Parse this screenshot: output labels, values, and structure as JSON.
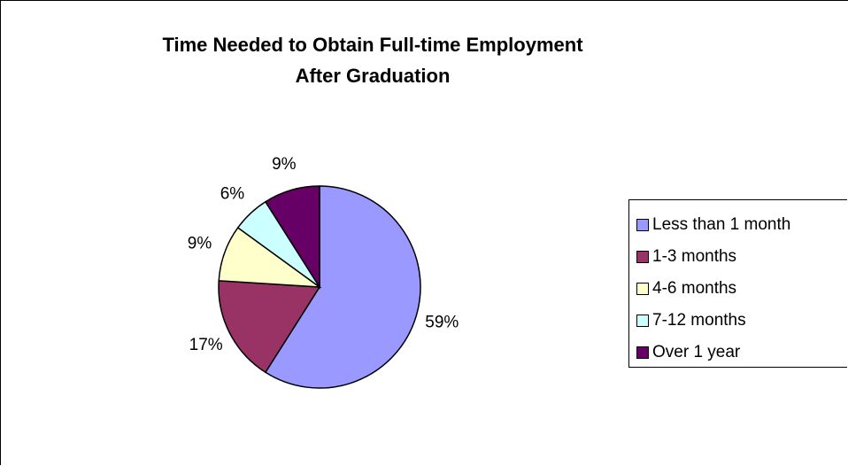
{
  "chart_data": {
    "type": "pie",
    "title_lines": [
      "Time Needed to Obtain Full-time Employment",
      "After Graduation"
    ],
    "categories": [
      "Less than 1 month",
      "1-3 months",
      "4-6 months",
      "7-12 months",
      "Over 1 year"
    ],
    "values": [
      59,
      17,
      9,
      6,
      9
    ],
    "value_labels": [
      "59%",
      "17%",
      "9%",
      "6%",
      "9%"
    ],
    "colors": [
      "#9999ff",
      "#993366",
      "#ffffcc",
      "#ccffff",
      "#660066"
    ],
    "legend_position": "right"
  }
}
